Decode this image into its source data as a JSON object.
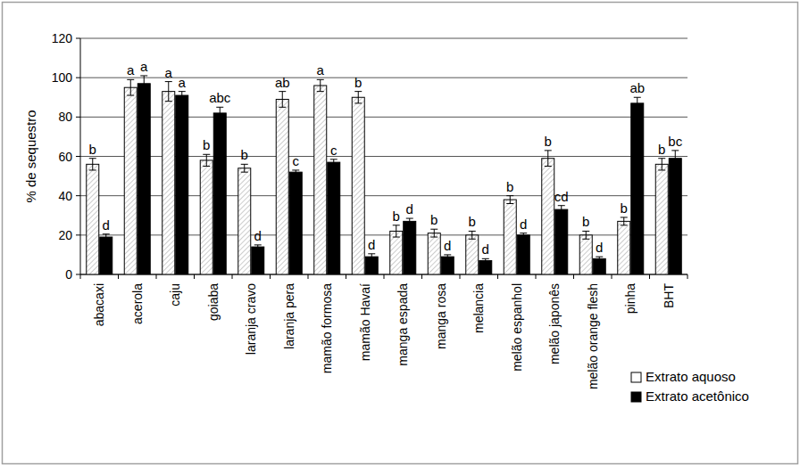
{
  "chart_data": {
    "type": "bar",
    "y_label": "% de sequestro",
    "categories": [
      "abacaxi",
      "acerola",
      "caju",
      "goiaba",
      "laranja cravo",
      "laranja pera",
      "mamão formosa",
      "mamão Havaí",
      "manga espada",
      "manga rosa",
      "melancia",
      "melão espanhol",
      "melão japonês",
      "melão orange flesh",
      "pinha",
      "BHT"
    ],
    "series": [
      {
        "name": "Extrato aquoso",
        "color": "#ffffff",
        "values": [
          56,
          95,
          93,
          58,
          54,
          89,
          96,
          90,
          22,
          21,
          20,
          38,
          59,
          20,
          27,
          56
        ],
        "errors": [
          3,
          4,
          5,
          3,
          2,
          4,
          3,
          3,
          3,
          2,
          2,
          2,
          4,
          2,
          2,
          3
        ],
        "letters": [
          "b",
          "a",
          "a",
          "b",
          "b",
          "ab",
          "a",
          "b",
          "b",
          "b",
          "b",
          "b",
          "b",
          "b",
          "b",
          "b"
        ]
      },
      {
        "name": "Extrato acetônico",
        "color": "#000000",
        "values": [
          19,
          97,
          91,
          82,
          14,
          52,
          57,
          9,
          27,
          9,
          7,
          20,
          33,
          8,
          87,
          59
        ],
        "errors": [
          1.5,
          4,
          2,
          3,
          1,
          1,
          1.5,
          1.5,
          1.5,
          1,
          1,
          1,
          2,
          1,
          3,
          4
        ],
        "letters": [
          "d",
          "a",
          "a",
          "abc",
          "d",
          "c",
          "c",
          "d",
          "d",
          "d",
          "d",
          "d",
          "cd",
          "d",
          "ab",
          "bc"
        ]
      }
    ],
    "ylim": [
      0,
      120
    ],
    "yticks": [
      0,
      20,
      40,
      60,
      80,
      100,
      120
    ],
    "grid": true,
    "legend": "bottom-right"
  }
}
